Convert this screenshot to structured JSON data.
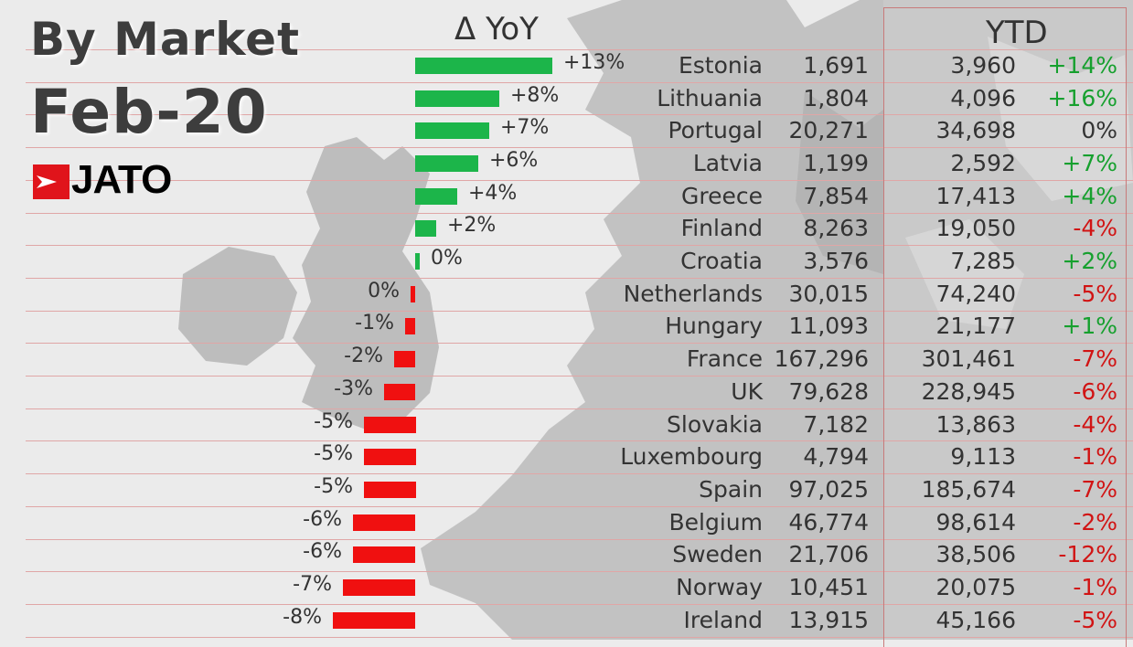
{
  "title": "By Market",
  "period": "Feb-20",
  "logo": {
    "text": "JATO",
    "color": "#e0141b"
  },
  "headers": {
    "yoy": "Δ YoY",
    "ytd": "YTD"
  },
  "colors": {
    "positive": "#1cb54a",
    "negative": "#f01010",
    "ytd_positive": "#16a02e",
    "ytd_negative": "#d11414"
  },
  "chart_data": {
    "type": "bar",
    "orientation": "horizontal",
    "categories": [
      "Estonia",
      "Lithuania",
      "Portugal",
      "Latvia",
      "Greece",
      "Finland",
      "Croatia",
      "Netherlands",
      "Hungary",
      "France",
      "UK",
      "Slovakia",
      "Luxembourg",
      "Spain",
      "Belgium",
      "Sweden",
      "Norway",
      "Ireland"
    ],
    "yoy_pct": [
      13,
      8,
      7,
      6,
      4,
      2,
      0,
      0,
      -1,
      -2,
      -3,
      -5,
      -5,
      -5,
      -6,
      -6,
      -7,
      -8
    ],
    "yoy_labels": [
      "+13%",
      "+8%",
      "+7%",
      "+6%",
      "+4%",
      "+2%",
      "0%",
      "0%",
      "-1%",
      "-2%",
      "-3%",
      "-5%",
      "-5%",
      "-5%",
      "-6%",
      "-6%",
      "-7%",
      "-8%"
    ],
    "yoy_sign": [
      "pos",
      "pos",
      "pos",
      "pos",
      "pos",
      "pos",
      "pos",
      "neg",
      "neg",
      "neg",
      "neg",
      "neg",
      "neg",
      "neg",
      "neg",
      "neg",
      "neg",
      "neg"
    ],
    "feb_volume": [
      "1,691",
      "1,804",
      "20,271",
      "1,199",
      "7,854",
      "8,263",
      "3,576",
      "30,015",
      "11,093",
      "167,296",
      "79,628",
      "7,182",
      "4,794",
      "97,025",
      "46,774",
      "21,706",
      "10,451",
      "13,915"
    ],
    "ytd_volume": [
      "3,960",
      "4,096",
      "34,698",
      "2,592",
      "17,413",
      "19,050",
      "7,285",
      "74,240",
      "21,177",
      "301,461",
      "228,945",
      "13,863",
      "9,113",
      "185,674",
      "98,614",
      "38,506",
      "20,075",
      "45,166"
    ],
    "ytd_change": [
      "+14%",
      "+16%",
      "0%",
      "+7%",
      "+4%",
      "-4%",
      "+2%",
      "-5%",
      "+1%",
      "-7%",
      "-6%",
      "-4%",
      "-1%",
      "-7%",
      "-2%",
      "-12%",
      "-1%",
      "-5%"
    ],
    "ytd_change_color": [
      "pos",
      "pos",
      "neutral",
      "pos",
      "pos",
      "neg",
      "pos",
      "neg",
      "pos",
      "neg",
      "neg",
      "neg",
      "neg",
      "neg",
      "neg",
      "neg",
      "neg",
      "neg"
    ]
  }
}
